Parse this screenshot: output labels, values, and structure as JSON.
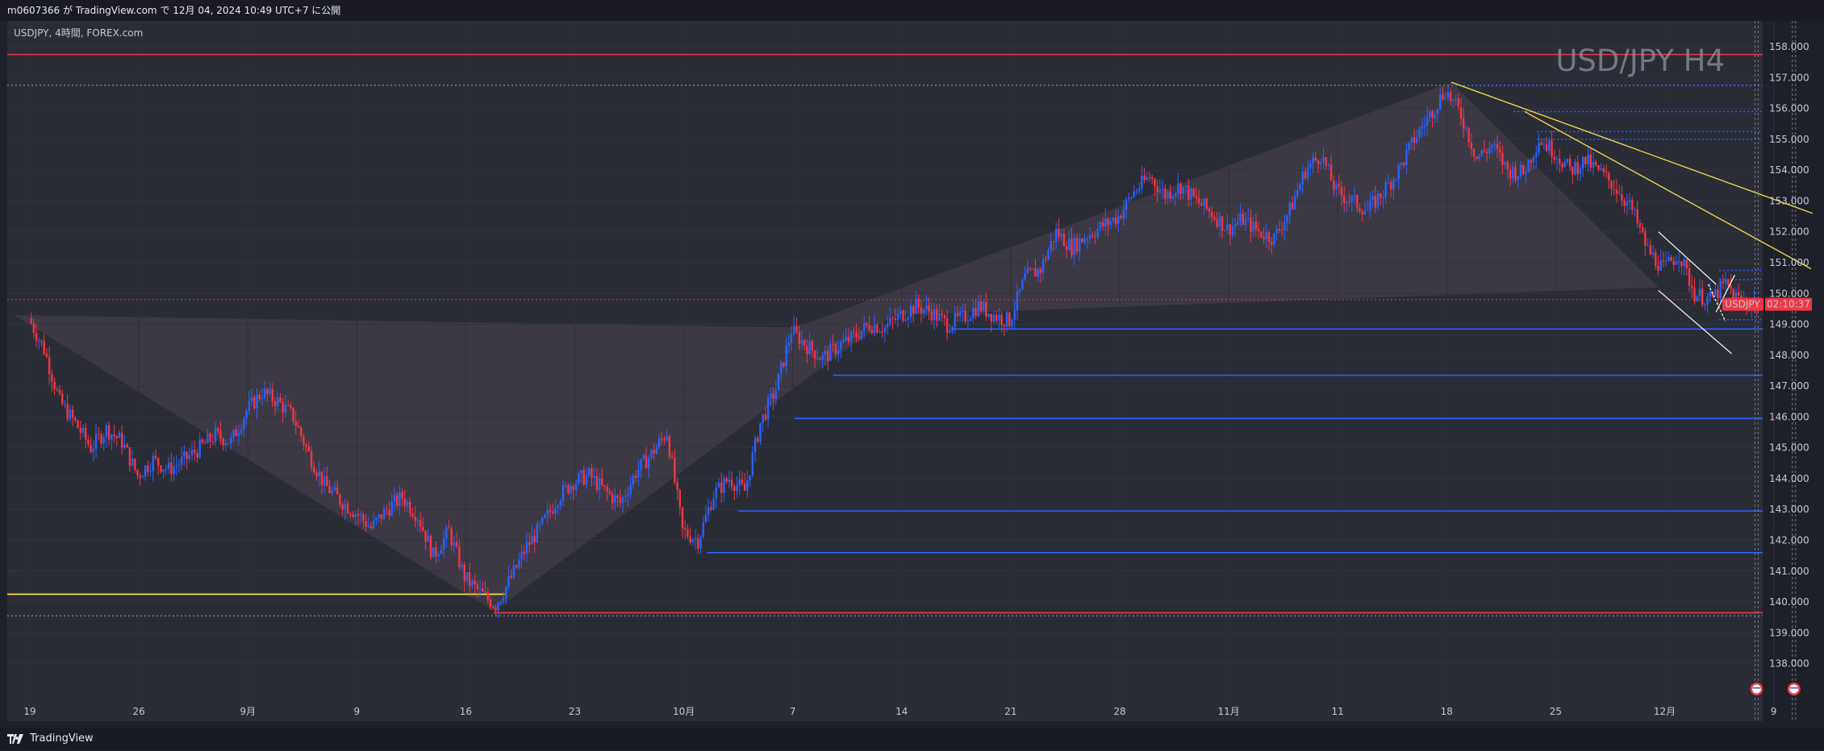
{
  "header": {
    "text": "m0607366 が TradingView.com で 12月 04, 2024 10:49 UTC+7 に公開"
  },
  "footer": {
    "brand": "TradingView"
  },
  "chart_data": {
    "type": "candlestick",
    "symbol_line": "USDJPY, 4時間, FOREX.com",
    "watermark": "USD/JPY H4",
    "price_badge": {
      "symbol": "USDJPY",
      "time": "02:10:37",
      "price": 149.65,
      "color": "#f23645"
    },
    "ylim": [
      137.65,
      158.55
    ],
    "y_ticks": [
      "158.000",
      "157.000",
      "156.000",
      "155.000",
      "154.000",
      "153.000",
      "152.000",
      "151.000",
      "150.000",
      "149.000",
      "148.000",
      "147.000",
      "146.000",
      "145.000",
      "144.000",
      "143.000",
      "142.000",
      "141.000",
      "140.000",
      "139.000",
      "138.000"
    ],
    "x_ticks": [
      "19",
      "26",
      "9月",
      "9",
      "16",
      "23",
      "10月",
      "7",
      "14",
      "21",
      "28",
      "11月",
      "11",
      "18",
      "25",
      "12月",
      "9"
    ],
    "x_tick_index": [
      0,
      7,
      14,
      21,
      28,
      35,
      42,
      49,
      56,
      63,
      70,
      77,
      84,
      91,
      98,
      105,
      112
    ],
    "price_path": [
      [
        0,
        149.2
      ],
      [
        1,
        148.2
      ],
      [
        2,
        146.5
      ],
      [
        3,
        145.8
      ],
      [
        4,
        145.0
      ],
      [
        5,
        145.6
      ],
      [
        6,
        145.2
      ],
      [
        7,
        144.1
      ],
      [
        8,
        144.6
      ],
      [
        9,
        144.3
      ],
      [
        10,
        144.6
      ],
      [
        11,
        145.0
      ],
      [
        12,
        145.4
      ],
      [
        13,
        145.2
      ],
      [
        14,
        146.2
      ],
      [
        15,
        146.8
      ],
      [
        16,
        146.5
      ],
      [
        17,
        146.0
      ],
      [
        18,
        144.8
      ],
      [
        19,
        143.8
      ],
      [
        20,
        143.3
      ],
      [
        21,
        142.9
      ],
      [
        22,
        142.4
      ],
      [
        23,
        143.0
      ],
      [
        24,
        143.4
      ],
      [
        25,
        142.8
      ],
      [
        26,
        141.5
      ],
      [
        27,
        142.3
      ],
      [
        28,
        140.8
      ],
      [
        29,
        140.3
      ],
      [
        30,
        139.9
      ],
      [
        31,
        140.8
      ],
      [
        32,
        141.8
      ],
      [
        33,
        142.5
      ],
      [
        34,
        143.4
      ],
      [
        35,
        143.9
      ],
      [
        36,
        144.1
      ],
      [
        37,
        143.6
      ],
      [
        38,
        143.2
      ],
      [
        39,
        144.2
      ],
      [
        40,
        144.8
      ],
      [
        41,
        145.5
      ],
      [
        42,
        142.3
      ],
      [
        43,
        142.0
      ],
      [
        44,
        143.5
      ],
      [
        45,
        144.0
      ],
      [
        46,
        143.6
      ],
      [
        47,
        145.8
      ],
      [
        48,
        146.9
      ],
      [
        49,
        148.8
      ],
      [
        50,
        148.3
      ],
      [
        51,
        147.9
      ],
      [
        52,
        148.3
      ],
      [
        53,
        148.6
      ],
      [
        54,
        149.0
      ],
      [
        55,
        148.9
      ],
      [
        56,
        149.3
      ],
      [
        57,
        149.6
      ],
      [
        58,
        149.4
      ],
      [
        59,
        149.0
      ],
      [
        60,
        149.2
      ],
      [
        61,
        149.6
      ],
      [
        62,
        149.3
      ],
      [
        63,
        149.1
      ],
      [
        64,
        150.5
      ],
      [
        65,
        150.8
      ],
      [
        66,
        152.0
      ],
      [
        67,
        151.5
      ],
      [
        68,
        151.9
      ],
      [
        69,
        152.2
      ],
      [
        70,
        152.5
      ],
      [
        71,
        153.3
      ],
      [
        72,
        153.8
      ],
      [
        73,
        153.2
      ],
      [
        74,
        153.5
      ],
      [
        75,
        153.0
      ],
      [
        76,
        152.6
      ],
      [
        77,
        152.1
      ],
      [
        78,
        152.4
      ],
      [
        79,
        152.0
      ],
      [
        80,
        151.8
      ],
      [
        81,
        152.7
      ],
      [
        82,
        154.0
      ],
      [
        83,
        154.5
      ],
      [
        84,
        153.3
      ],
      [
        85,
        153.0
      ],
      [
        86,
        152.7
      ],
      [
        87,
        153.3
      ],
      [
        88,
        154.0
      ],
      [
        89,
        155.0
      ],
      [
        90,
        155.8
      ],
      [
        91,
        156.6
      ],
      [
        92,
        155.8
      ],
      [
        93,
        154.4
      ],
      [
        94,
        154.8
      ],
      [
        95,
        154.0
      ],
      [
        96,
        153.9
      ],
      [
        97,
        155.0
      ],
      [
        98,
        154.6
      ],
      [
        99,
        154.0
      ],
      [
        100,
        154.3
      ],
      [
        101,
        153.9
      ],
      [
        102,
        153.4
      ],
      [
        103,
        152.7
      ],
      [
        104,
        151.4
      ],
      [
        105,
        150.8
      ],
      [
        106,
        151.3
      ],
      [
        107,
        150.0
      ],
      [
        108,
        149.8
      ],
      [
        109,
        150.3
      ],
      [
        110,
        149.7
      ],
      [
        111,
        149.7
      ]
    ],
    "candles_per_day": 6,
    "horizontal_levels": [
      {
        "price": 157.75,
        "color": "#f23645",
        "from_index": -1,
        "dotted": false
      },
      {
        "price": 156.75,
        "color": "#787b86",
        "from_index": -1,
        "dotted": true
      },
      {
        "price": 149.8,
        "color": "#f23645",
        "from_index": -1,
        "dotted": true,
        "thin": true
      },
      {
        "price": 140.25,
        "color": "#ffeb3b",
        "from_index": -1,
        "to_index": 30.5,
        "dotted": false
      },
      {
        "price": 139.65,
        "color": "#f23645",
        "from_index": 29.8,
        "dotted": false
      },
      {
        "price": 139.55,
        "color": "#787b86",
        "from_index": -1,
        "dotted": true
      },
      {
        "price": 148.85,
        "color": "#2962ff",
        "from_index": 59.2,
        "dotted": false
      },
      {
        "price": 147.35,
        "color": "#2962ff",
        "from_index": 51.6,
        "dotted": false
      },
      {
        "price": 145.95,
        "color": "#2962ff",
        "from_index": 49.1,
        "dotted": false
      },
      {
        "price": 142.95,
        "color": "#2962ff",
        "from_index": 45.5,
        "dotted": false
      },
      {
        "price": 141.6,
        "color": "#2962ff",
        "from_index": 43.5,
        "dotted": false
      },
      {
        "price": 156.75,
        "color": "#2962ff",
        "from_index": 91.3,
        "dotted": true
      },
      {
        "price": 155.9,
        "color": "#2962ff",
        "from_index": 95.3,
        "dotted": true
      },
      {
        "price": 155.25,
        "color": "#2962ff",
        "from_index": 96.8,
        "dotted": true
      },
      {
        "price": 155.0,
        "color": "#2962ff",
        "from_index": 96.8,
        "dotted": true
      },
      {
        "price": 150.75,
        "color": "#2962ff",
        "from_index": 108.5,
        "dotted": true
      },
      {
        "price": 150.45,
        "color": "#2962ff",
        "from_index": 108.5,
        "dotted": true
      },
      {
        "price": 149.15,
        "color": "#2962ff",
        "from_index": 108.5,
        "dotted": true
      }
    ],
    "trend_lines": [
      {
        "from": [
          91.3,
          156.85
        ],
        "to": [
          114.5,
          152.6
        ],
        "color": "#e8d44d"
      },
      {
        "from": [
          96.0,
          155.9
        ],
        "to": [
          114.4,
          150.8
        ],
        "color": "#e8d44d"
      }
    ],
    "shaded_zigzag": {
      "color": "#4a4450",
      "points": [
        [
          -1,
          149.3
        ],
        [
          29.8,
          139.7
        ],
        [
          49.2,
          148.9
        ],
        [
          55.4,
          149.3
        ],
        [
          91.3,
          156.85
        ],
        [
          104.6,
          150.2
        ]
      ]
    },
    "channel": {
      "color": "#ffffff",
      "upper": [
        [
          104.6,
          152.0
        ],
        [
          108.3,
          150.3
        ]
      ],
      "lower": [
        [
          104.6,
          150.1
        ],
        [
          109.3,
          148.05
        ]
      ]
    },
    "vertical_dotted": {
      "indices": [
        110.8,
        113.2
      ],
      "color": "#787b86"
    },
    "event_icons": [
      "us-flag-icon",
      "us-flag-icon"
    ]
  }
}
